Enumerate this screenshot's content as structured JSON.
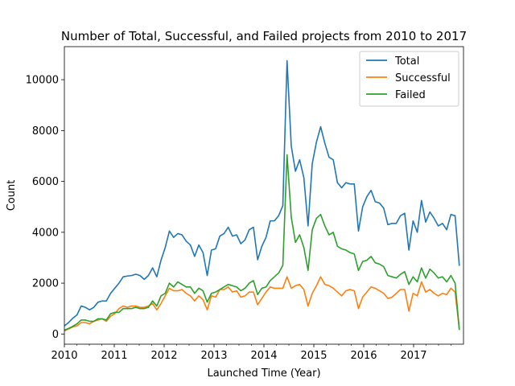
{
  "chart_data": {
    "type": "line",
    "title": "Number of Total, Successful, and Failed projects from 2010 to 2017",
    "xlabel": "Launched Time (Year)",
    "ylabel": "Count",
    "x_range": [
      2010.0,
      2018.0
    ],
    "ylim": [
      -400,
      11300
    ],
    "x_ticks": [
      2010,
      2011,
      2012,
      2013,
      2014,
      2015,
      2016,
      2017
    ],
    "x_tick_labels": [
      "2010",
      "2011",
      "2012",
      "2013",
      "2014",
      "2015",
      "2016",
      "2017"
    ],
    "y_ticks": [
      0,
      2000,
      4000,
      6000,
      8000,
      10000
    ],
    "y_tick_labels": [
      "0",
      "2000",
      "4000",
      "6000",
      "8000",
      "10000"
    ],
    "grid": false,
    "legend_position": "top-right",
    "x_months_start": "2010-01",
    "series": [
      {
        "name": "Total",
        "color": "#1f77b4",
        "values": [
          320,
          450,
          620,
          750,
          1100,
          1050,
          950,
          1050,
          1250,
          1300,
          1300,
          1600,
          1800,
          2000,
          2250,
          2280,
          2300,
          2350,
          2300,
          2150,
          2300,
          2600,
          2250,
          2900,
          3400,
          4050,
          3800,
          3950,
          3900,
          3650,
          3500,
          3050,
          3500,
          3200,
          2300,
          3300,
          3350,
          3850,
          3950,
          4200,
          3850,
          3900,
          3550,
          3700,
          4100,
          4200,
          2920,
          3450,
          3800,
          4450,
          4450,
          4650,
          5050,
          10750,
          7400,
          6400,
          6850,
          6150,
          4250,
          6700,
          7550,
          8150,
          7500,
          6950,
          6850,
          5950,
          5750,
          5950,
          5900,
          5900,
          4050,
          5000,
          5400,
          5650,
          5200,
          5150,
          4950,
          4300,
          4350,
          4350,
          4650,
          4750,
          3300,
          4450,
          4000,
          5250,
          4400,
          4800,
          4550,
          4250,
          4350,
          4100,
          4700,
          4650,
          2700
        ]
      },
      {
        "name": "Successful",
        "color": "#ff7f0e",
        "values": [
          120,
          200,
          280,
          320,
          450,
          450,
          400,
          500,
          550,
          600,
          500,
          700,
          800,
          1000,
          1100,
          1050,
          1100,
          1100,
          1050,
          1050,
          1100,
          1200,
          950,
          1200,
          1500,
          1800,
          1700,
          1700,
          1750,
          1600,
          1500,
          1300,
          1500,
          1350,
          950,
          1500,
          1450,
          1750,
          1750,
          1850,
          1650,
          1700,
          1450,
          1500,
          1650,
          1650,
          1150,
          1400,
          1650,
          1850,
          1800,
          1800,
          1800,
          2250,
          1800,
          1900,
          1950,
          1750,
          1100,
          1600,
          1900,
          2250,
          1950,
          1900,
          1800,
          1650,
          1500,
          1700,
          1750,
          1700,
          1000,
          1450,
          1650,
          1850,
          1800,
          1700,
          1600,
          1400,
          1450,
          1600,
          1750,
          1750,
          900,
          1600,
          1500,
          2050,
          1650,
          1750,
          1600,
          1500,
          1600,
          1550,
          1800,
          1650,
          200
        ]
      },
      {
        "name": "Failed",
        "color": "#2ca02c",
        "values": [
          150,
          220,
          300,
          400,
          550,
          550,
          500,
          500,
          600,
          600,
          550,
          800,
          850,
          850,
          1000,
          1000,
          1000,
          1050,
          1000,
          1000,
          1050,
          1300,
          1100,
          1500,
          1600,
          2000,
          1850,
          2050,
          1950,
          1850,
          1850,
          1600,
          1800,
          1700,
          1250,
          1600,
          1650,
          1750,
          1850,
          1950,
          1900,
          1850,
          1700,
          1800,
          2000,
          2100,
          1550,
          1800,
          1850,
          2100,
          2250,
          2400,
          2700,
          7050,
          4600,
          3600,
          3900,
          3400,
          2500,
          4100,
          4550,
          4700,
          4250,
          3900,
          4000,
          3450,
          3350,
          3300,
          3200,
          3150,
          2500,
          2850,
          2900,
          3050,
          2800,
          2750,
          2650,
          2300,
          2250,
          2200,
          2350,
          2450,
          1950,
          2250,
          2050,
          2600,
          2200,
          2550,
          2400,
          2200,
          2250,
          2050,
          2300,
          2000,
          180
        ]
      }
    ]
  }
}
